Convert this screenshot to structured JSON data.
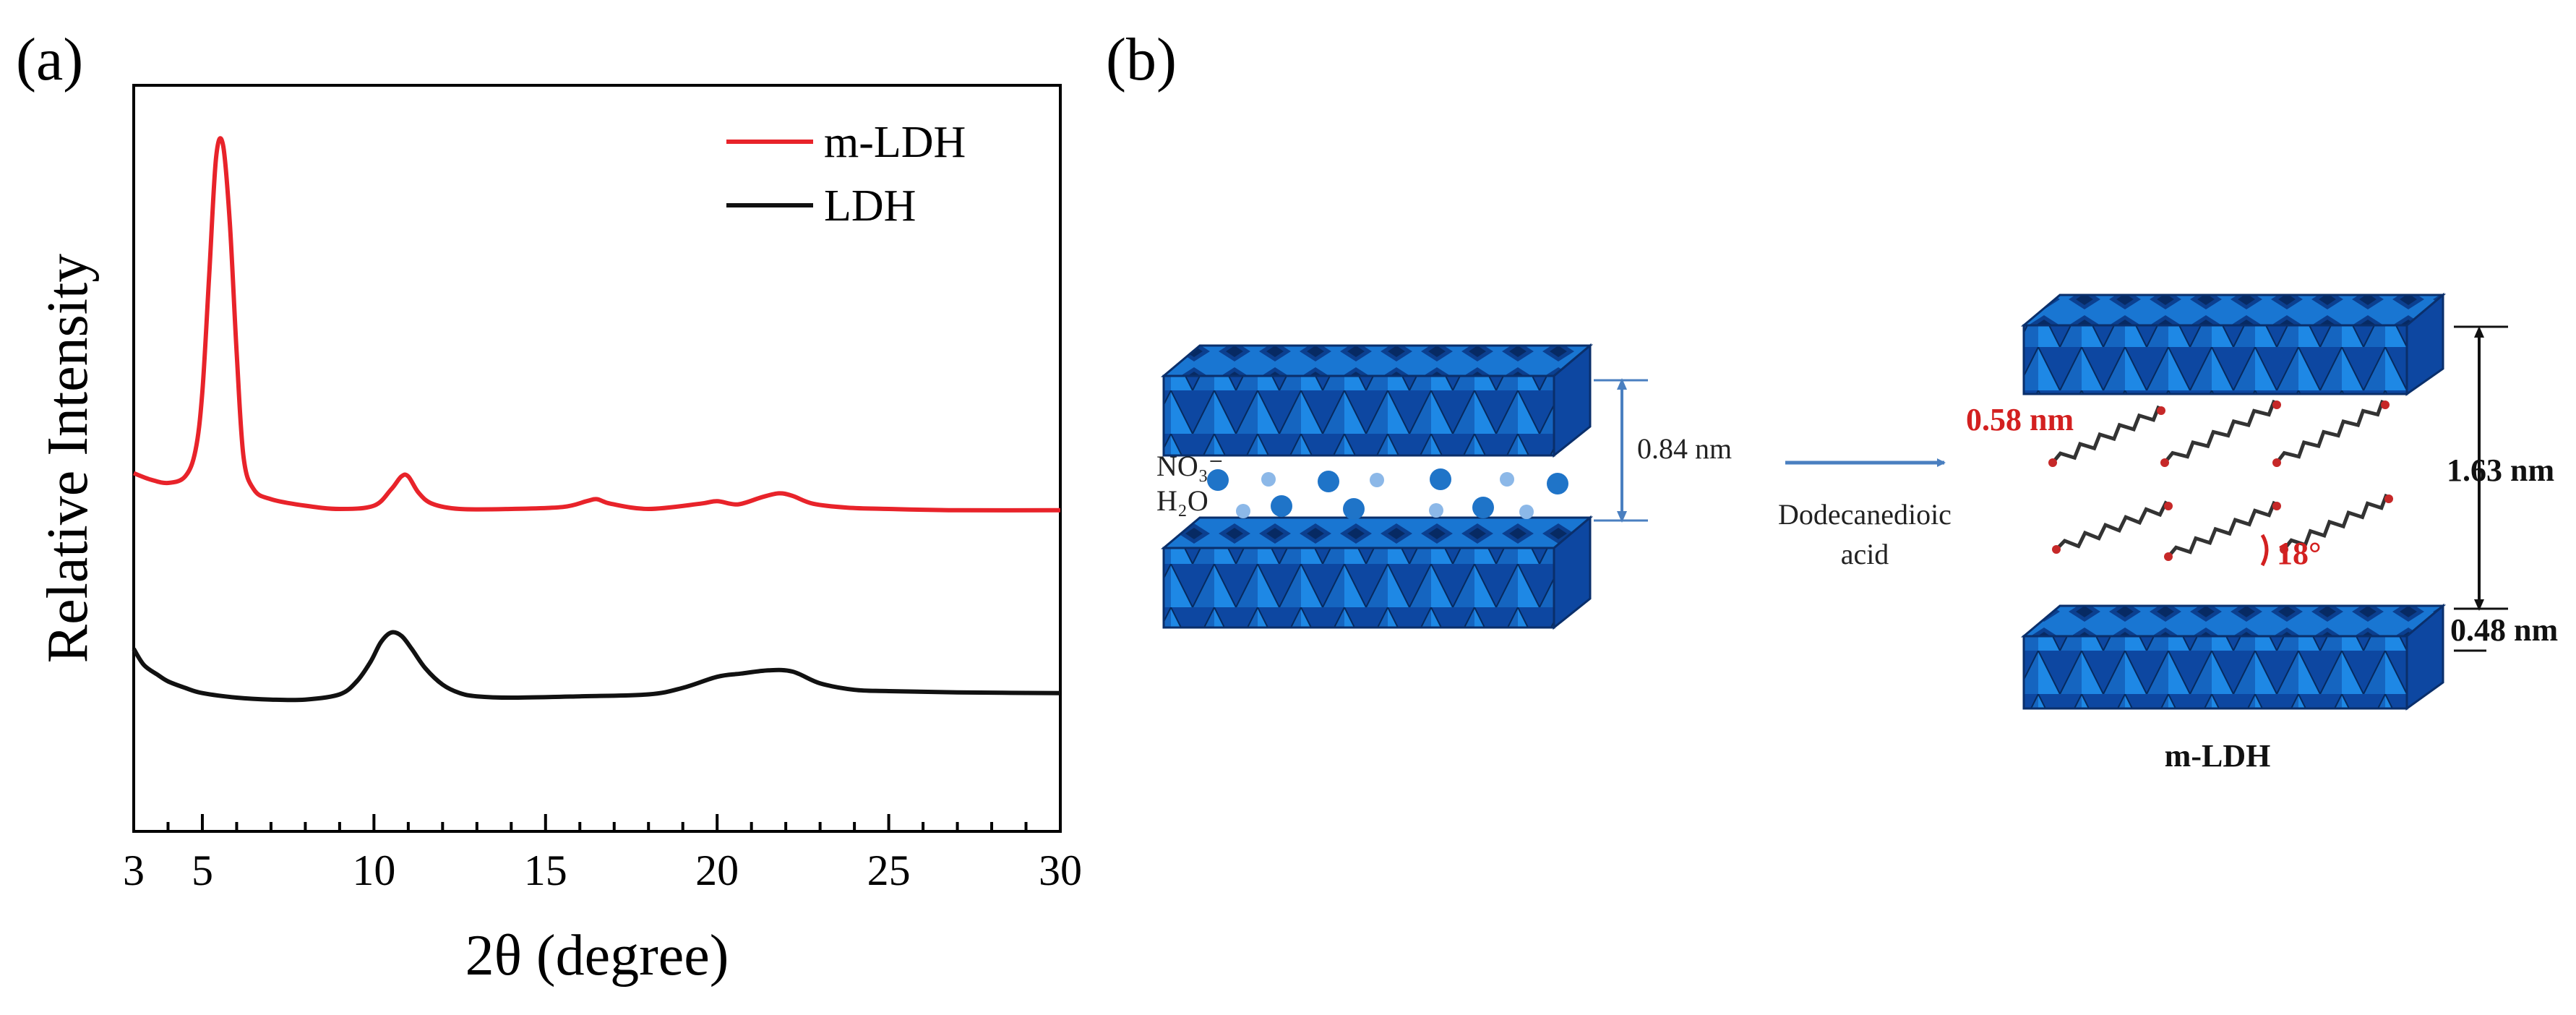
{
  "panel_a_label": "(a)",
  "panel_b_label": "(b)",
  "chart_data": {
    "type": "line",
    "xlabel": "2θ (degree)",
    "ylabel": "Relative Intensity",
    "xlim": [
      3,
      30
    ],
    "xticks": [
      3,
      5,
      10,
      15,
      20,
      25,
      30
    ],
    "grid": false,
    "legend_position": "top-right",
    "y_ticks_shown": false,
    "series": [
      {
        "name": "m-LDH",
        "color": "#e8232a",
        "x": [
          3,
          3.5,
          4.0,
          4.5,
          4.8,
          5.0,
          5.2,
          5.4,
          5.6,
          5.8,
          6.0,
          6.2,
          6.5,
          7.0,
          8.0,
          9.0,
          10.0,
          10.5,
          10.8,
          11.0,
          11.3,
          11.7,
          12.5,
          14.0,
          15.5,
          16.2,
          16.5,
          16.9,
          18.0,
          19.5,
          20.0,
          20.6,
          21.3,
          21.8,
          22.2,
          22.8,
          23.8,
          25.0,
          27.0,
          30.0
        ],
        "y": [
          0.495,
          0.485,
          0.48,
          0.49,
          0.53,
          0.62,
          0.8,
          0.98,
          1.0,
          0.88,
          0.68,
          0.52,
          0.47,
          0.455,
          0.445,
          0.44,
          0.445,
          0.47,
          0.49,
          0.49,
          0.465,
          0.448,
          0.44,
          0.44,
          0.443,
          0.452,
          0.455,
          0.448,
          0.44,
          0.448,
          0.452,
          0.447,
          0.458,
          0.464,
          0.46,
          0.448,
          0.442,
          0.44,
          0.438,
          0.438
        ]
      },
      {
        "name": "LDH",
        "color": "#111111",
        "x": [
          3,
          3.3,
          3.7,
          4.0,
          4.5,
          5.0,
          6.0,
          7.0,
          8.0,
          9.0,
          9.5,
          9.9,
          10.2,
          10.5,
          10.8,
          11.1,
          11.5,
          12.0,
          12.5,
          13.0,
          14.0,
          16.0,
          18.0,
          19.0,
          20.0,
          20.7,
          21.5,
          22.2,
          23.0,
          24.0,
          25.0,
          27.0,
          30.0
        ],
        "y": [
          0.225,
          0.2,
          0.185,
          0.175,
          0.165,
          0.157,
          0.15,
          0.147,
          0.147,
          0.155,
          0.175,
          0.205,
          0.235,
          0.25,
          0.245,
          0.225,
          0.195,
          0.17,
          0.157,
          0.152,
          0.15,
          0.152,
          0.155,
          0.165,
          0.182,
          0.187,
          0.192,
          0.19,
          0.172,
          0.162,
          0.16,
          0.158,
          0.157
        ]
      }
    ]
  },
  "diagram": {
    "left_spacing_label": "0.84 nm",
    "anion_label": "NO₃⁻",
    "water_label": "H₂O",
    "arrow_label_line1": "Dodecanedioic",
    "arrow_label_line2": "acid",
    "chain_length_label": "0.58 nm",
    "gallery_label": "1.63 nm",
    "layer_label": "0.48 nm",
    "tilt_angle_label": "18°",
    "product_label": "m-LDH",
    "layer_color": "#1565c0",
    "arrow_color": "#4a7fc0",
    "red_label_color": "#d32020"
  }
}
